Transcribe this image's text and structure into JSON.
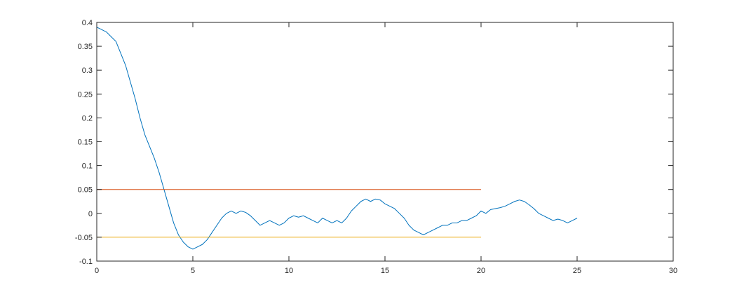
{
  "chart_data": {
    "type": "line",
    "xlim": [
      0,
      30
    ],
    "ylim": [
      -0.1,
      0.4
    ],
    "x_ticks": [
      0,
      5,
      10,
      15,
      20,
      25,
      30
    ],
    "y_ticks": [
      -0.1,
      -0.05,
      0,
      0.05,
      0.1,
      0.15,
      0.2,
      0.25,
      0.3,
      0.35,
      0.4
    ],
    "x_tick_labels": [
      "0",
      "5",
      "10",
      "15",
      "20",
      "25",
      "30"
    ],
    "y_tick_labels": [
      "-0.1",
      "-0.05",
      "0",
      "0.05",
      "0.1",
      "0.15",
      "0.2",
      "0.25",
      "0.3",
      "0.35",
      "0.4"
    ],
    "grid": false,
    "series": [
      {
        "color": "#0072BD",
        "x": [
          0,
          0.25,
          0.5,
          0.75,
          1.0,
          1.25,
          1.5,
          1.75,
          2.0,
          2.25,
          2.5,
          2.75,
          3.0,
          3.25,
          3.5,
          3.75,
          4.0,
          4.25,
          4.5,
          4.75,
          5.0,
          5.25,
          5.5,
          5.75,
          6.0,
          6.25,
          6.5,
          6.75,
          7.0,
          7.25,
          7.5,
          7.75,
          8.0,
          8.25,
          8.5,
          8.75,
          9.0,
          9.25,
          9.5,
          9.75,
          10.0,
          10.25,
          10.5,
          10.75,
          11.0,
          11.25,
          11.5,
          11.75,
          12.0,
          12.25,
          12.5,
          12.75,
          13.0,
          13.25,
          13.5,
          13.75,
          14.0,
          14.25,
          14.5,
          14.75,
          15.0,
          15.25,
          15.5,
          15.75,
          16.0,
          16.25,
          16.5,
          16.75,
          17.0,
          17.25,
          17.5,
          17.75,
          18.0,
          18.25,
          18.5,
          18.75,
          19.0,
          19.25,
          19.5,
          19.75,
          20.0,
          20.25,
          20.5,
          20.75,
          21.0,
          21.25,
          21.5,
          21.75,
          22.0,
          22.25,
          22.5,
          22.75,
          23.0,
          23.25,
          23.5,
          23.75,
          24.0,
          24.25,
          24.5,
          24.75,
          25.0
        ],
        "y": [
          0.39,
          0.385,
          0.38,
          0.37,
          0.36,
          0.335,
          0.31,
          0.275,
          0.24,
          0.2,
          0.165,
          0.14,
          0.115,
          0.085,
          0.05,
          0.015,
          -0.02,
          -0.045,
          -0.06,
          -0.07,
          -0.075,
          -0.07,
          -0.065,
          -0.055,
          -0.04,
          -0.025,
          -0.01,
          0.0,
          0.005,
          0.0,
          0.005,
          0.002,
          -0.005,
          -0.015,
          -0.025,
          -0.02,
          -0.015,
          -0.02,
          -0.025,
          -0.02,
          -0.01,
          -0.005,
          -0.008,
          -0.005,
          -0.01,
          -0.015,
          -0.02,
          -0.01,
          -0.015,
          -0.02,
          -0.015,
          -0.02,
          -0.01,
          0.005,
          0.015,
          0.025,
          0.03,
          0.025,
          0.03,
          0.028,
          0.02,
          0.015,
          0.01,
          0.0,
          -0.01,
          -0.025,
          -0.035,
          -0.04,
          -0.045,
          -0.04,
          -0.035,
          -0.03,
          -0.025,
          -0.025,
          -0.02,
          -0.02,
          -0.015,
          -0.015,
          -0.01,
          -0.005,
          0.005,
          0.0,
          0.008,
          0.01,
          0.012,
          0.015,
          0.02,
          0.025,
          0.028,
          0.025,
          0.018,
          0.01,
          0.0,
          -0.005,
          -0.01,
          -0.015,
          -0.012,
          -0.015,
          -0.02,
          -0.015,
          -0.01
        ]
      },
      {
        "color": "#D95319",
        "x": [
          0,
          20
        ],
        "y": [
          0.05,
          0.05
        ]
      },
      {
        "color": "#EDB120",
        "x": [
          0,
          20
        ],
        "y": [
          -0.05,
          -0.05
        ]
      }
    ]
  }
}
